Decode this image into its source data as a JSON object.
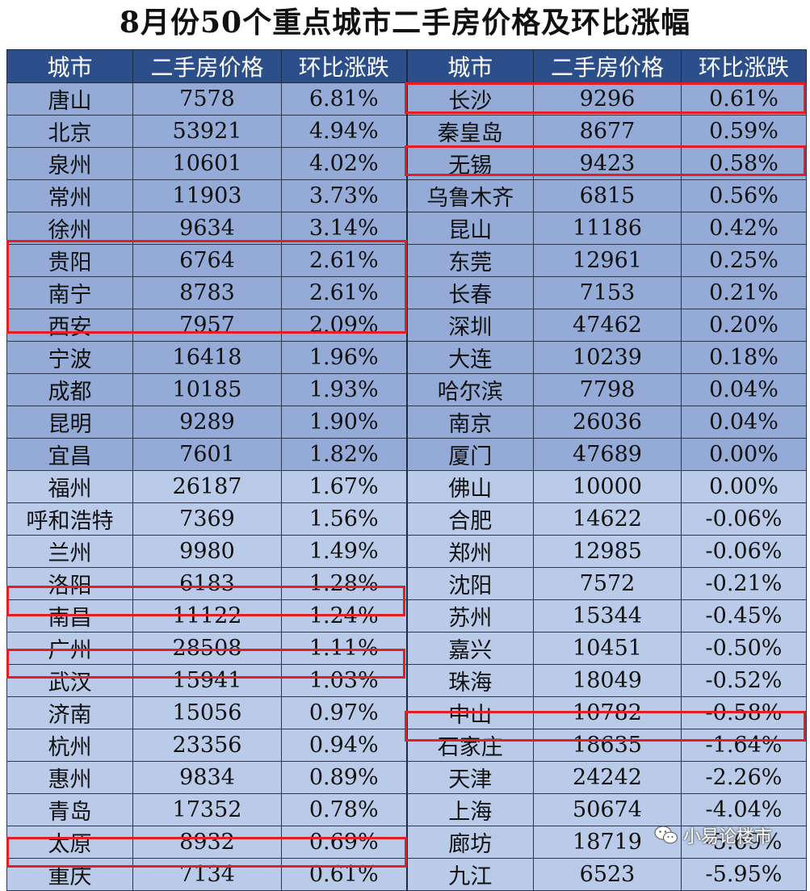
{
  "title": "8月份50个重点城市二手房价格及环比涨幅",
  "headers": [
    "城市",
    "二手房价格",
    "环比涨跌",
    "城市",
    "二手房价格",
    "环比涨跌"
  ],
  "rows": [
    [
      "唐山",
      "7578",
      "6.81%",
      "长沙",
      "9296",
      "0.61%"
    ],
    [
      "北京",
      "53921",
      "4.94%",
      "秦皇岛",
      "8677",
      "0.59%"
    ],
    [
      "泉州",
      "10601",
      "4.02%",
      "无锡",
      "9423",
      "0.58%"
    ],
    [
      "常州",
      "11903",
      "3.73%",
      "乌鲁木齐",
      "6815",
      "0.56%"
    ],
    [
      "徐州",
      "9634",
      "3.14%",
      "昆山",
      "11186",
      "0.42%"
    ],
    [
      "贵阳",
      "6764",
      "2.61%",
      "东莞",
      "12961",
      "0.25%"
    ],
    [
      "南宁",
      "8783",
      "2.61%",
      "长春",
      "7153",
      "0.21%"
    ],
    [
      "西安",
      "7957",
      "2.09%",
      "深圳",
      "47462",
      "0.20%"
    ],
    [
      "宁波",
      "16418",
      "1.96%",
      "大连",
      "10239",
      "0.18%"
    ],
    [
      "成都",
      "10185",
      "1.93%",
      "哈尔滨",
      "7798",
      "0.04%"
    ],
    [
      "昆明",
      "9289",
      "1.90%",
      "南京",
      "26036",
      "0.04%"
    ],
    [
      "宜昌",
      "7601",
      "1.82%",
      "厦门",
      "47689",
      "0.00%"
    ],
    [
      "福州",
      "26187",
      "1.67%",
      "佛山",
      "10000",
      "0.00%"
    ],
    [
      "呼和浩特",
      "7369",
      "1.56%",
      "合肥",
      "14622",
      "-0.06%"
    ],
    [
      "兰州",
      "9980",
      "1.49%",
      "郑州",
      "12985",
      "-0.06%"
    ],
    [
      "洛阳",
      "6183",
      "1.28%",
      "沈阳",
      "7572",
      "-0.21%"
    ],
    [
      "南昌",
      "11122",
      "1.24%",
      "苏州",
      "15344",
      "-0.45%"
    ],
    [
      "广州",
      "28508",
      "1.11%",
      "嘉兴",
      "10451",
      "-0.50%"
    ],
    [
      "武汉",
      "15941",
      "1.03%",
      "珠海",
      "18049",
      "-0.52%"
    ],
    [
      "济南",
      "15056",
      "0.97%",
      "中山",
      "10782",
      "-0.58%"
    ],
    [
      "杭州",
      "23356",
      "0.94%",
      "石家庄",
      "18635",
      "-1.64%"
    ],
    [
      "惠州",
      "9834",
      "0.89%",
      "天津",
      "24242",
      "-2.26%"
    ],
    [
      "青岛",
      "17352",
      "0.78%",
      "上海",
      "50674",
      "-4.04%"
    ],
    [
      "太原",
      "8932",
      "0.69%",
      "廊坊",
      "18719",
      "-5.69%"
    ],
    [
      "重庆",
      "7134",
      "0.61%",
      "九江",
      "6523",
      "-5.95%"
    ]
  ],
  "row_shading": [
    "dark",
    "dark",
    "dark",
    "dark",
    "dark",
    "dark",
    "dark",
    "dark",
    "dark",
    "dark",
    "dark",
    "dark",
    "light",
    "light",
    "light",
    "light",
    "light",
    "light",
    "light",
    "light",
    "light",
    "light",
    "light",
    "light",
    "light"
  ],
  "highlight_color": "#e41e25",
  "header_color": "#2c4f8c",
  "watermark": {
    "icon": "wechat-icon",
    "text": "小易论楼市"
  }
}
